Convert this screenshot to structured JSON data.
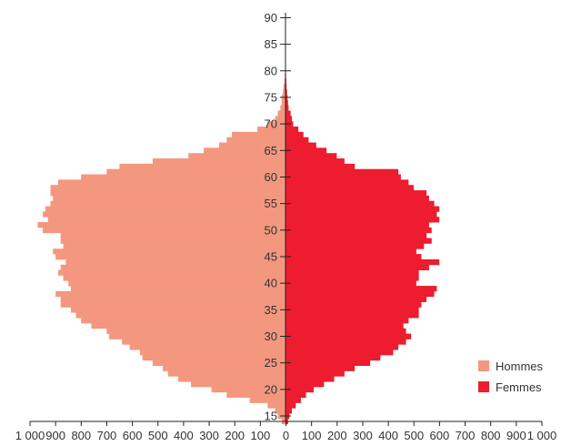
{
  "chart_data": {
    "type": "bar",
    "orientation": "horizontal-pyramid",
    "grid": false,
    "legend_position": "bottom-right",
    "colors": {
      "hommes": "#f4977f",
      "femmes": "#ed1c2e",
      "axis": "#222222"
    },
    "x_ticks": [
      "1 000",
      "900",
      "800",
      "700",
      "600",
      "500",
      "400",
      "300",
      "200",
      "100",
      "0",
      "100",
      "200",
      "300",
      "400",
      "500",
      "600",
      "700",
      "800",
      "900",
      "1 000"
    ],
    "y_ticks": [
      "15",
      "20",
      "25",
      "30",
      "35",
      "40",
      "45",
      "50",
      "55",
      "60",
      "65",
      "70",
      "75",
      "80",
      "85",
      "90"
    ],
    "xlim": [
      -1000,
      1000
    ],
    "ylim": [
      14,
      92
    ],
    "ages": [
      14,
      15,
      16,
      17,
      18,
      19,
      20,
      21,
      22,
      23,
      24,
      25,
      26,
      27,
      28,
      29,
      30,
      31,
      32,
      33,
      34,
      35,
      36,
      37,
      38,
      39,
      40,
      41,
      42,
      43,
      44,
      45,
      46,
      47,
      48,
      49,
      50,
      51,
      52,
      53,
      54,
      55,
      56,
      57,
      58,
      59,
      60,
      61,
      62,
      63,
      64,
      65,
      66,
      67,
      68,
      69,
      70,
      71,
      72,
      73,
      74,
      75,
      76,
      77,
      78,
      79
    ],
    "series": [
      {
        "name": "Hommes",
        "values": [
          15,
          30,
          40,
          70,
          140,
          230,
          290,
          370,
          420,
          460,
          480,
          520,
          560,
          570,
          610,
          640,
          690,
          700,
          760,
          800,
          820,
          840,
          880,
          880,
          900,
          840,
          850,
          870,
          890,
          880,
          860,
          900,
          910,
          870,
          880,
          880,
          950,
          970,
          930,
          950,
          940,
          920,
          910,
          920,
          920,
          890,
          800,
          700,
          650,
          520,
          380,
          320,
          260,
          230,
          210,
          110,
          70,
          40,
          30,
          20,
          15,
          15,
          10,
          8,
          5,
          3
        ]
      },
      {
        "name": "Femmes",
        "values": [
          10,
          15,
          25,
          40,
          60,
          80,
          110,
          150,
          190,
          230,
          270,
          330,
          370,
          420,
          440,
          470,
          490,
          470,
          460,
          480,
          520,
          520,
          530,
          550,
          580,
          590,
          510,
          520,
          520,
          560,
          600,
          530,
          510,
          540,
          570,
          550,
          570,
          560,
          600,
          590,
          600,
          580,
          560,
          550,
          500,
          480,
          450,
          440,
          270,
          230,
          200,
          160,
          120,
          90,
          70,
          50,
          30,
          25,
          20,
          12,
          10,
          8,
          6,
          4,
          3,
          2
        ]
      }
    ]
  },
  "legend": {
    "items": [
      {
        "label": "Hommes",
        "color": "#f4977f"
      },
      {
        "label": "Femmes",
        "color": "#ed1c2e"
      }
    ]
  }
}
